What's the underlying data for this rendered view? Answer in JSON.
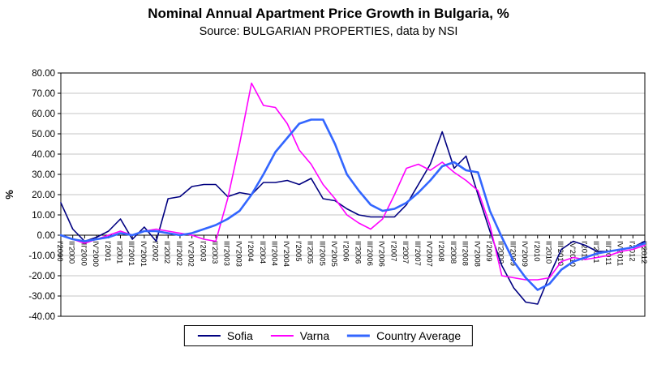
{
  "header": {
    "title": "Nominal Annual Apartment Price Growth in Bulgaria, %",
    "subtitle": "Source: BULGARIAN PROPERTIES, data by NSI"
  },
  "chart_data": {
    "type": "line",
    "title": "Nominal Annual Apartment Price Growth in Bulgaria, %",
    "subtitle": "Source: BULGARIAN PROPERTIES, data by NSI",
    "xlabel": "",
    "ylabel": "%",
    "ylim": [
      -40,
      80
    ],
    "ytick_step": 10,
    "ytick_format_decimals": 2,
    "grid": true,
    "legend_position": "bottom",
    "axis_colors": {
      "gridline": "#C6C6C6",
      "axis": "#000000",
      "plot_background": "#FFFFFF"
    },
    "categories": [
      "I'2000",
      "II'2000",
      "III'2000",
      "IV'2000",
      "I'2001",
      "II'2001",
      "III'2001",
      "IV'2001",
      "I'2002",
      "II'2002",
      "III'2002",
      "IV'2002",
      "I'2003",
      "II'2003",
      "III'2003",
      "IV'2003",
      "I'2004",
      "II'2004",
      "III'2004",
      "IV'2004",
      "I'2005",
      "II'2005",
      "III'2005",
      "IV'2005",
      "I'2006",
      "II'2006",
      "III'2006",
      "IV'2006",
      "I'2007",
      "II'2007",
      "III'2007",
      "IV'2007",
      "I'2008",
      "II'2008",
      "III'2008",
      "IV'2008",
      "I'2009",
      "II'2009",
      "III'2009",
      "IV'2009",
      "I'2010",
      "II'2010",
      "III'2010",
      "IV'2010",
      "I'2011",
      "II'2011",
      "III'2011",
      "IV'2011",
      "I'2012",
      "II'2012"
    ],
    "series": [
      {
        "name": "Sofia",
        "color": "#000080",
        "line_width": 1.6,
        "values": [
          16,
          3,
          -3,
          -1,
          2,
          8,
          -2,
          4,
          -3,
          18,
          19,
          24,
          25,
          25,
          19,
          21,
          20,
          26,
          26,
          27,
          25,
          28,
          18,
          17,
          13,
          10,
          9,
          9,
          9,
          15,
          25,
          35,
          51,
          33,
          39,
          20,
          2,
          -15,
          -26,
          -33,
          -34,
          -20,
          -7,
          -3,
          -5,
          -8,
          -8,
          -7,
          -6,
          -3
        ]
      },
      {
        "name": "Varna",
        "color": "#FF00FF",
        "line_width": 1.6,
        "values": [
          0,
          -2,
          -4,
          -2,
          0,
          2,
          0,
          2,
          3,
          2,
          1,
          0,
          -2,
          -3,
          18,
          45,
          75,
          64,
          63,
          55,
          42,
          35,
          25,
          18,
          10,
          6,
          3,
          8,
          20,
          33,
          35,
          32,
          36,
          31,
          27,
          22,
          5,
          -20,
          -21,
          -22,
          -22,
          -21,
          -13,
          -11,
          -12,
          -11,
          -10,
          -8,
          -7,
          -5
        ]
      },
      {
        "name": "Country Average",
        "color": "#3366FF",
        "line_width": 2.6,
        "values": [
          0,
          -2,
          -3,
          -2,
          -1,
          1,
          0,
          2,
          2,
          1,
          0,
          1,
          3,
          5,
          8,
          12,
          20,
          30,
          41,
          48,
          55,
          57,
          57,
          45,
          30,
          22,
          15,
          12,
          13,
          16,
          21,
          27,
          34,
          36,
          32,
          31,
          12,
          -1,
          -13,
          -21,
          -27,
          -24,
          -17,
          -13,
          -11,
          -9,
          -8,
          -7,
          -6,
          -4
        ]
      }
    ]
  }
}
